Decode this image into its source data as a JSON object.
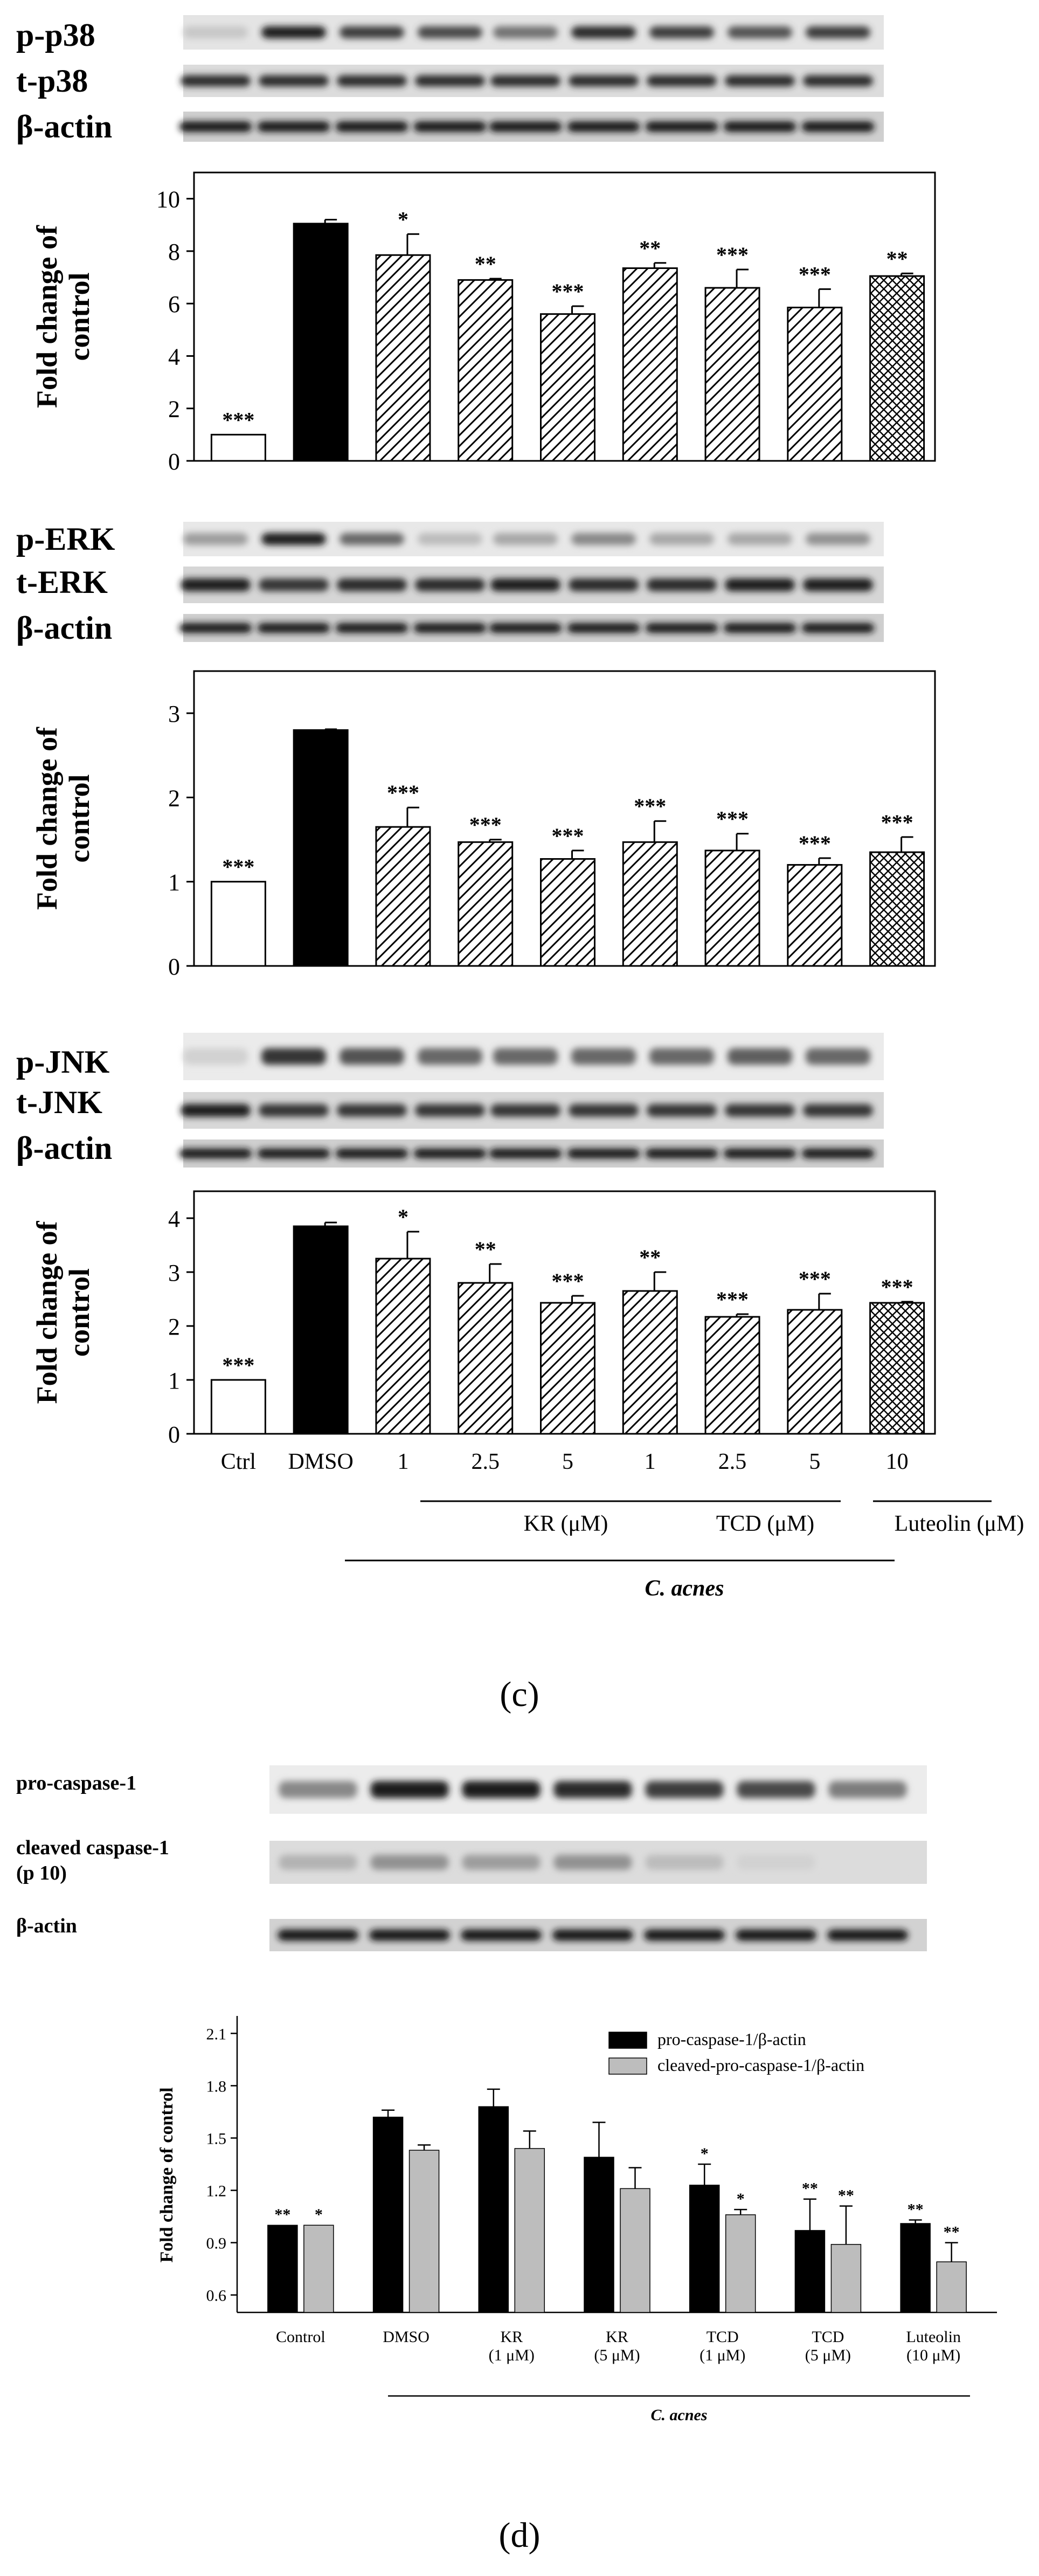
{
  "panel_labels": {
    "c": "(c)",
    "d": "(d)"
  },
  "blot_labels": {
    "p38": [
      "p-p38",
      "t-p38",
      "β-actin"
    ],
    "erk": [
      "p-ERK",
      "t-ERK",
      "β-actin"
    ],
    "jnk": [
      "p-JNK",
      "t-JNK",
      "β-actin"
    ],
    "caspase": [
      "pro-caspase-1",
      "cleaved caspase-1",
      "(p 10)",
      "β-actin"
    ]
  },
  "x_axis_c": {
    "groups": [
      "Ctrl",
      "DMSO",
      "1",
      "2.5",
      "5",
      "1",
      "2.5",
      "5",
      "10"
    ],
    "group_labels": [
      "KR (μM)",
      "TCD (μM)",
      "Luteolin (μM)"
    ],
    "footer": "C. acnes"
  },
  "x_axis_d": {
    "groups": [
      [
        "Control"
      ],
      [
        "DMSO"
      ],
      [
        "KR",
        "(1 μM)"
      ],
      [
        "KR",
        "(5 μM)"
      ],
      [
        "TCD",
        "(1 μM)"
      ],
      [
        "TCD",
        "(5 μM)"
      ],
      [
        "Luteolin",
        "(10 μM)"
      ]
    ],
    "footer": "C. acnes"
  },
  "colors": {
    "bar_black": "#000000",
    "bar_grey": "#bdbdbd",
    "hatch": "#000000",
    "axis": "#000000"
  },
  "chart_data": [
    {
      "id": "c_p38",
      "type": "bar",
      "title": "",
      "xlabel": "",
      "ylabel": "Fold change of control",
      "categories": [
        "Ctrl",
        "DMSO",
        "KR 1",
        "KR 2.5",
        "KR 5",
        "TCD 1",
        "TCD 2.5",
        "TCD 5",
        "Luteolin 10"
      ],
      "values": [
        1.0,
        9.05,
        7.85,
        6.9,
        5.6,
        7.35,
        6.6,
        5.85,
        7.05
      ],
      "errors": [
        0,
        0.15,
        0.8,
        0.05,
        0.3,
        0.2,
        0.7,
        0.7,
        0.1
      ],
      "significance": [
        "***",
        "",
        "*",
        "**",
        "***",
        "**",
        "***",
        "***",
        "**"
      ],
      "fills": [
        "white",
        "black",
        "diag",
        "diag",
        "diag",
        "diag",
        "diag",
        "diag",
        "cross"
      ],
      "ylim": [
        0,
        11
      ],
      "yticks": [
        0,
        2,
        4,
        6,
        8,
        10
      ],
      "grid": false
    },
    {
      "id": "c_erk",
      "type": "bar",
      "title": "",
      "xlabel": "",
      "ylabel": "Fold change of control",
      "categories": [
        "Ctrl",
        "DMSO",
        "KR 1",
        "KR 2.5",
        "KR 5",
        "TCD 1",
        "TCD 2.5",
        "TCD 5",
        "Luteolin 10"
      ],
      "values": [
        1.0,
        2.8,
        1.65,
        1.47,
        1.27,
        1.47,
        1.37,
        1.2,
        1.35
      ],
      "errors": [
        0,
        0.01,
        0.23,
        0.03,
        0.1,
        0.25,
        0.2,
        0.08,
        0.18
      ],
      "significance": [
        "***",
        "",
        "***",
        "***",
        "***",
        "***",
        "***",
        "***",
        "***"
      ],
      "fills": [
        "white",
        "black",
        "diag",
        "diag",
        "diag",
        "diag",
        "diag",
        "diag",
        "cross"
      ],
      "ylim": [
        0,
        3.5
      ],
      "yticks": [
        0,
        1,
        2,
        3
      ],
      "grid": false
    },
    {
      "id": "c_jnk",
      "type": "bar",
      "title": "",
      "xlabel": "",
      "ylabel": "Fold change of control",
      "categories": [
        "Ctrl",
        "DMSO",
        "KR 1",
        "KR 2.5",
        "KR 5",
        "TCD 1",
        "TCD 2.5",
        "TCD 5",
        "Luteolin 10"
      ],
      "values": [
        1.0,
        3.85,
        3.25,
        2.8,
        2.43,
        2.65,
        2.17,
        2.3,
        2.43
      ],
      "errors": [
        0,
        0.07,
        0.5,
        0.35,
        0.13,
        0.35,
        0.05,
        0.3,
        0.02
      ],
      "significance": [
        "***",
        "",
        "*",
        "**",
        "***",
        "**",
        "***",
        "***",
        "***"
      ],
      "fills": [
        "white",
        "black",
        "diag",
        "diag",
        "diag",
        "diag",
        "diag",
        "diag",
        "cross"
      ],
      "ylim": [
        0,
        4.5
      ],
      "yticks": [
        0,
        1,
        2,
        3,
        4
      ],
      "grid": false
    },
    {
      "id": "d_caspase",
      "type": "bar",
      "title": "",
      "xlabel": "",
      "ylabel": "Fold change of control",
      "categories": [
        "Control",
        "DMSO",
        "KR (1 μM)",
        "KR (5 μM)",
        "TCD (1 μM)",
        "TCD (5 μM)",
        "Luteolin (10 μM)"
      ],
      "series": [
        {
          "name": "pro-caspase-1/β-actin",
          "values": [
            1.0,
            1.62,
            1.68,
            1.39,
            1.23,
            0.97,
            1.01
          ],
          "errors": [
            0,
            0.04,
            0.1,
            0.2,
            0.12,
            0.18,
            0.02
          ],
          "significance": [
            "**",
            "",
            "",
            "",
            "*",
            "**",
            "**"
          ]
        },
        {
          "name": "cleaved-pro-caspase-1/β-actin",
          "values": [
            1.0,
            1.43,
            1.44,
            1.21,
            1.06,
            0.89,
            0.79
          ],
          "errors": [
            0,
            0.03,
            0.1,
            0.12,
            0.03,
            0.22,
            0.11
          ],
          "significance": [
            "*",
            "",
            "",
            "",
            "*",
            "**",
            "**"
          ]
        }
      ],
      "ylim": [
        0.5,
        2.2
      ],
      "yticks": [
        0.6,
        0.9,
        1.2,
        1.5,
        1.8,
        2.1
      ],
      "legend": "top-right",
      "grid": false
    }
  ]
}
